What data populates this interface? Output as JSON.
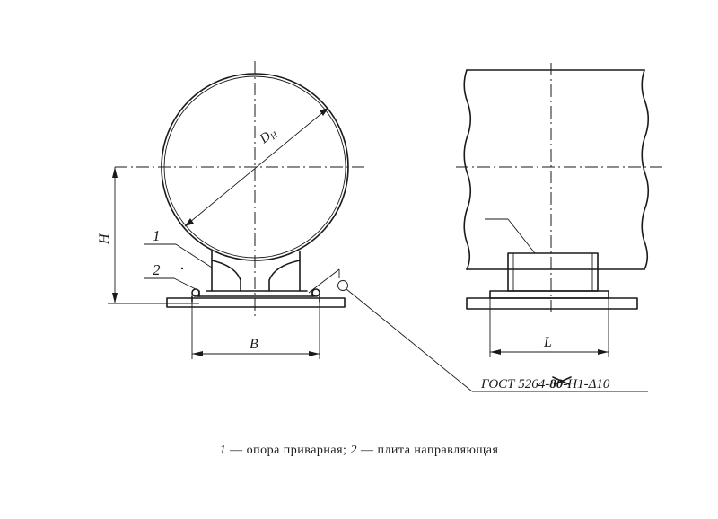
{
  "labels": {
    "dn": "D",
    "dn_sub": "H",
    "h": "H",
    "b": "B",
    "l": "L",
    "part1": "1",
    "part2": "2",
    "gost": "ГОСТ 5264-",
    "gost_strike": "80",
    "gost_tail": "-H1-",
    "delta": "Δ",
    "delta_val": "10"
  },
  "caption": {
    "num1": "1",
    "text1": " — опора приварная; ",
    "num2": "2",
    "text2": " — плита направляющая"
  }
}
